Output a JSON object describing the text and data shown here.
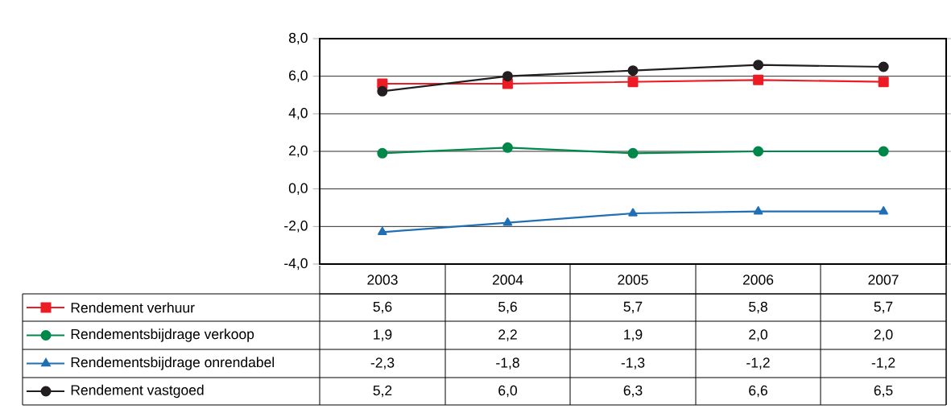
{
  "chart_data": {
    "type": "line",
    "categories": [
      "2003",
      "2004",
      "2005",
      "2006",
      "2007"
    ],
    "series": [
      {
        "name": "Rendement verhuur",
        "color": "#ed1c24",
        "marker": "square",
        "values": [
          5.6,
          5.6,
          5.7,
          5.8,
          5.7
        ],
        "value_labels": [
          "5,6",
          "5,6",
          "5,7",
          "5,8",
          "5,7"
        ]
      },
      {
        "name": "Rendementsbijdrage verkoop",
        "color": "#00874a",
        "marker": "circle",
        "values": [
          1.9,
          2.2,
          1.9,
          2.0,
          2.0
        ],
        "value_labels": [
          "1,9",
          "2,2",
          "1,9",
          "2,0",
          "2,0"
        ]
      },
      {
        "name": "Rendementsbijdrage onrendabel",
        "color": "#1f6fb5",
        "marker": "triangle",
        "values": [
          -2.3,
          -1.8,
          -1.3,
          -1.2,
          -1.2
        ],
        "value_labels": [
          "-2,3",
          "-1,8",
          "-1,3",
          "-1,2",
          "-1,2"
        ]
      },
      {
        "name": "Rendement vastgoed",
        "color": "#231f20",
        "marker": "circle",
        "values": [
          5.2,
          6.0,
          6.3,
          6.6,
          6.5
        ],
        "value_labels": [
          "5,2",
          "6,0",
          "6,3",
          "6,6",
          "6,5"
        ]
      }
    ],
    "ylim": [
      -4,
      8
    ],
    "yticks": [
      {
        "value": -4,
        "label": "-4,0"
      },
      {
        "value": -2,
        "label": "-2,0"
      },
      {
        "value": 0,
        "label": "0,0"
      },
      {
        "value": 2,
        "label": "2,0"
      },
      {
        "value": 4,
        "label": "4,0"
      },
      {
        "value": 6,
        "label": "6,0"
      },
      {
        "value": 8,
        "label": "8,0"
      }
    ],
    "grid": "y",
    "legend": "bottom left",
    "line_style": "solid"
  }
}
